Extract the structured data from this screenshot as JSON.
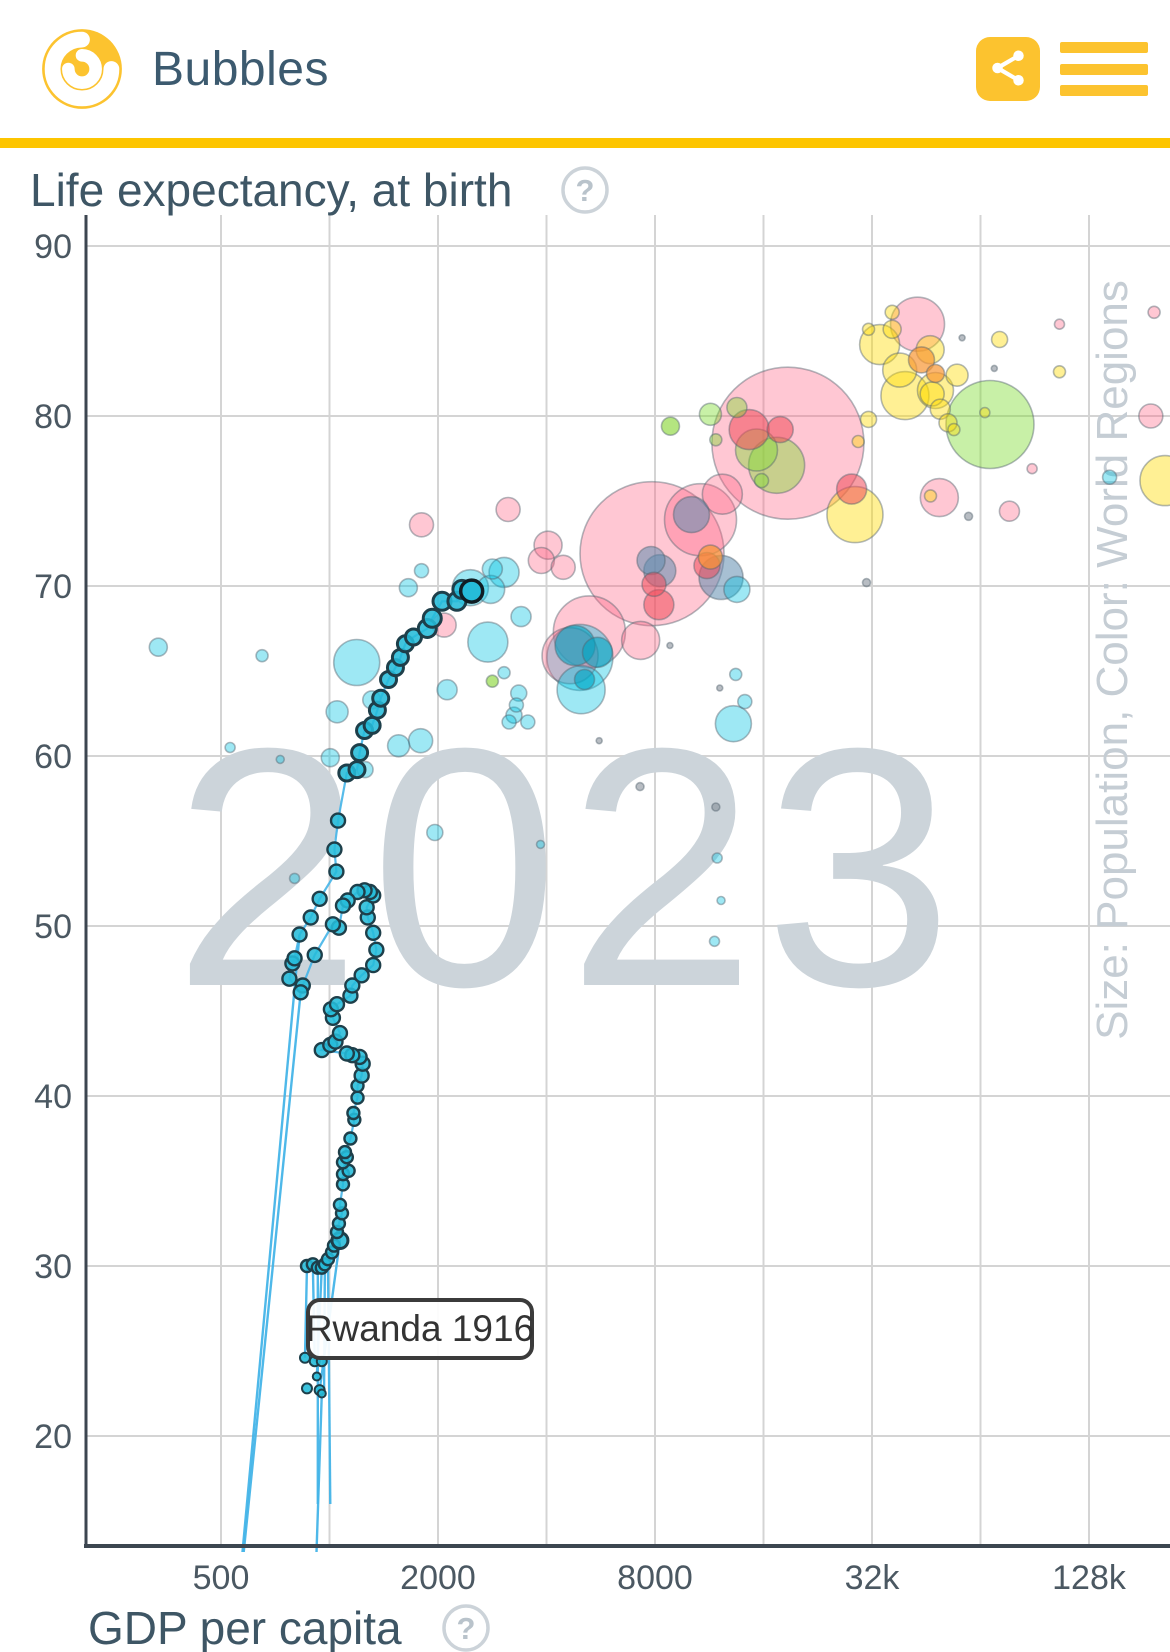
{
  "header": {
    "app_title": "Bubbles"
  },
  "chart": {
    "title": "Life expectancy, at birth",
    "x_title": "GDP per capita",
    "watermark": "2023",
    "side_label": "Size: Population, Color: World Regions",
    "annotation": "Rwanda 1916",
    "help_glyph": "?"
  },
  "chart_data": {
    "type": "scatter",
    "title": "Life expectancy, at birth",
    "xlabel": "GDP per capita",
    "ylabel": "Life expectancy, at birth",
    "x_scale": "log2",
    "x_range": [
      210,
      215000
    ],
    "y_range": [
      13.6,
      92.4
    ],
    "year": "2023",
    "size_by": "Population",
    "color_by": "World Regions",
    "y_ticks": [
      90,
      80,
      70,
      60,
      50,
      40,
      30,
      20
    ],
    "x_ticks": [
      {
        "value": 500,
        "label": "500"
      },
      {
        "value": 2000,
        "label": "2000"
      },
      {
        "value": 8000,
        "label": "8000"
      },
      {
        "value": 32000,
        "label": "32k"
      },
      {
        "value": 128000,
        "label": "128k"
      }
    ],
    "x_gridlines": [
      500,
      1000,
      2000,
      4000,
      8000,
      16000,
      32000,
      64000,
      128000
    ],
    "region_colors": {
      "africa": "rgba(0,195,225,0.38)",
      "asia": "rgba(255,95,130,0.35)",
      "europe": "rgba(255,220,0,0.42)",
      "americas": "rgba(125,220,45,0.42)",
      "red": "rgba(240,75,90,0.55)",
      "orange": "rgba(248,150,50,0.70)",
      "steel": "rgba(95,140,175,0.55)",
      "teal": "rgba(0,165,195,0.60)",
      "lime": "rgba(140,215,60,0.65)",
      "gray": "rgba(125,135,145,0.55)",
      "bubble_stroke": "rgba(85,100,110,0.45)",
      "trail_fill": "#26bcd9",
      "trail_stroke": "#1e3f4a",
      "trail_line": "#45b5e8",
      "highlight_stroke": "#101e24"
    },
    "bubbles": [
      [
        335,
        66.4,
        9,
        "africa"
      ],
      [
        650,
        65.9,
        6,
        "africa"
      ],
      [
        1190,
        65.5,
        23,
        "africa"
      ],
      [
        1050,
        62.6,
        11,
        "africa"
      ],
      [
        1310,
        63.3,
        9,
        "africa"
      ],
      [
        1555,
        60.6,
        11,
        "africa"
      ],
      [
        1005,
        59.9,
        9,
        "africa"
      ],
      [
        1255,
        59.2,
        8,
        "africa"
      ],
      [
        1655,
        69.9,
        9,
        "africa"
      ],
      [
        1800,
        70.9,
        7,
        "africa"
      ],
      [
        2460,
        69.9,
        18,
        "africa"
      ],
      [
        3050,
        70.8,
        15,
        "africa"
      ],
      [
        2830,
        71.0,
        10,
        "africa"
      ],
      [
        2800,
        69.8,
        14,
        "africa"
      ],
      [
        3400,
        68.2,
        10,
        "africa"
      ],
      [
        2750,
        66.7,
        20,
        "africa"
      ],
      [
        3050,
        64.9,
        6,
        "africa"
      ],
      [
        3350,
        63.7,
        8,
        "africa"
      ],
      [
        3300,
        63.0,
        7,
        "africa"
      ],
      [
        3250,
        62.4,
        8,
        "africa"
      ],
      [
        3550,
        62.0,
        7,
        "africa"
      ],
      [
        3150,
        62.0,
        7,
        "africa"
      ],
      [
        4950,
        65.8,
        33,
        "africa"
      ],
      [
        4990,
        63.9,
        24,
        "africa"
      ],
      [
        13200,
        61.9,
        18,
        "africa"
      ],
      [
        13500,
        69.8,
        13,
        "africa"
      ],
      [
        13400,
        64.8,
        6,
        "africa"
      ],
      [
        14200,
        63.2,
        7,
        "africa"
      ],
      [
        2120,
        63.9,
        10,
        "africa"
      ],
      [
        1790,
        60.9,
        12,
        "africa"
      ],
      [
        1960,
        55.5,
        8,
        "africa"
      ],
      [
        3850,
        54.8,
        4,
        "africa"
      ],
      [
        800,
        52.8,
        5,
        "africa"
      ],
      [
        11900,
        54.0,
        5,
        "africa"
      ],
      [
        12200,
        51.5,
        4,
        "africa"
      ],
      [
        11700,
        49.1,
        5,
        "africa"
      ],
      [
        146000,
        76.4,
        7,
        "africa"
      ],
      [
        730,
        59.8,
        4,
        "africa"
      ],
      [
        530,
        60.5,
        5,
        "africa"
      ],
      [
        4800,
        66.5,
        20,
        "teal"
      ],
      [
        5540,
        66.1,
        15,
        "teal"
      ],
      [
        5100,
        64.5,
        10,
        "teal"
      ],
      [
        7850,
        71.9,
        72,
        "asia"
      ],
      [
        18700,
        78.4,
        76,
        "asia"
      ],
      [
        42800,
        85.4,
        27,
        "asia"
      ],
      [
        4650,
        65.9,
        28,
        "asia"
      ],
      [
        5260,
        67.3,
        36,
        "asia"
      ],
      [
        7300,
        66.8,
        19,
        "asia"
      ],
      [
        10700,
        73.9,
        36,
        "asia"
      ],
      [
        12300,
        75.4,
        20,
        "asia"
      ],
      [
        49200,
        75.2,
        19,
        "asia"
      ],
      [
        77000,
        74.4,
        10,
        "asia"
      ],
      [
        106000,
        85.4,
        5,
        "asia"
      ],
      [
        1800,
        73.6,
        12,
        "asia"
      ],
      [
        3130,
        74.5,
        12,
        "asia"
      ],
      [
        4040,
        72.4,
        14,
        "asia"
      ],
      [
        3870,
        71.5,
        13,
        "asia"
      ],
      [
        4450,
        71.1,
        12,
        "asia"
      ],
      [
        2080,
        67.7,
        12,
        "asia"
      ],
      [
        89000,
        76.9,
        5,
        "asia"
      ],
      [
        190000,
        80.0,
        12,
        "asia"
      ],
      [
        194000,
        86.1,
        6,
        "asia"
      ],
      [
        28100,
        75.7,
        15,
        "red"
      ],
      [
        14600,
        79.2,
        20,
        "red"
      ],
      [
        17800,
        79.2,
        13,
        "red"
      ],
      [
        7950,
        70.1,
        12,
        "red"
      ],
      [
        8200,
        68.9,
        15,
        "red"
      ],
      [
        11150,
        71.2,
        13,
        "red"
      ],
      [
        11400,
        71.7,
        12,
        "orange"
      ],
      [
        43900,
        83.3,
        13,
        "orange"
      ],
      [
        48000,
        82.5,
        9,
        "orange"
      ],
      [
        12200,
        70.5,
        22,
        "steel"
      ],
      [
        8250,
        70.9,
        16,
        "steel"
      ],
      [
        7800,
        71.5,
        14,
        "steel"
      ],
      [
        10100,
        74.2,
        18,
        "steel"
      ],
      [
        33600,
        84.2,
        20,
        "europe"
      ],
      [
        38200,
        82.7,
        17,
        "europe"
      ],
      [
        46400,
        83.9,
        14,
        "europe"
      ],
      [
        39500,
        81.2,
        24,
        "europe"
      ],
      [
        48000,
        81.5,
        18,
        "europe"
      ],
      [
        55100,
        82.4,
        11,
        "europe"
      ],
      [
        36400,
        85.1,
        9,
        "europe"
      ],
      [
        72300,
        84.5,
        8,
        "europe"
      ],
      [
        106000,
        82.6,
        6,
        "europe"
      ],
      [
        28700,
        74.2,
        28,
        "europe"
      ],
      [
        31300,
        79.8,
        8,
        "europe"
      ],
      [
        29300,
        78.5,
        6,
        "europe"
      ],
      [
        54000,
        79.2,
        6,
        "europe"
      ],
      [
        65800,
        80.2,
        5,
        "europe"
      ],
      [
        36400,
        86.1,
        7,
        "europe"
      ],
      [
        31300,
        85.1,
        6,
        "europe"
      ],
      [
        208000,
        76.2,
        25,
        "europe"
      ],
      [
        46500,
        75.3,
        6,
        "europe"
      ],
      [
        47000,
        81.3,
        12,
        "europe"
      ],
      [
        49500,
        80.4,
        10,
        "europe"
      ],
      [
        52000,
        79.6,
        9,
        "europe"
      ],
      [
        68000,
        79.5,
        44,
        "americas"
      ],
      [
        17400,
        77.1,
        28,
        "americas"
      ],
      [
        15300,
        78.0,
        21,
        "americas"
      ],
      [
        11400,
        80.1,
        11,
        "americas"
      ],
      [
        13500,
        80.5,
        10,
        "americas"
      ],
      [
        11800,
        78.6,
        6,
        "americas"
      ],
      [
        15800,
        76.2,
        7,
        "americas"
      ],
      [
        8830,
        79.4,
        9,
        "lime"
      ],
      [
        2830,
        64.4,
        6,
        "lime"
      ],
      [
        56900,
        84.6,
        3,
        "gray"
      ],
      [
        69900,
        82.8,
        3,
        "gray"
      ],
      [
        59300,
        74.1,
        4,
        "gray"
      ],
      [
        7270,
        58.2,
        4,
        "gray"
      ],
      [
        30900,
        70.2,
        4,
        "gray"
      ],
      [
        5600,
        60.9,
        3,
        "gray"
      ],
      [
        8800,
        66.5,
        3,
        "gray"
      ],
      [
        12100,
        64.0,
        3,
        "gray"
      ],
      [
        11800,
        57.0,
        4,
        "gray"
      ]
    ],
    "trail": {
      "country": "Rwanda",
      "label": "Rwanda 1916",
      "highlight": [
        2480,
        69.7,
        11
      ],
      "points": [
        [
          866,
          30.0,
          6
        ],
        [
          899,
          30.1,
          6
        ],
        [
          928,
          29.9,
          6
        ],
        [
          952,
          29.9,
          6
        ],
        [
          971,
          30.1,
          6
        ],
        [
          990,
          30.4,
          6
        ],
        [
          1016,
          30.8,
          6
        ],
        [
          1029,
          31.2,
          6
        ],
        [
          1069,
          31.5,
          8
        ],
        [
          1049,
          32.0,
          6
        ],
        [
          1062,
          32.5,
          6
        ],
        [
          1083,
          33.1,
          6
        ],
        [
          1069,
          33.6,
          6
        ],
        [
          1090,
          34.8,
          6
        ],
        [
          1090,
          35.4,
          6
        ],
        [
          1130,
          35.6,
          6
        ],
        [
          1090,
          36.1,
          6
        ],
        [
          1117,
          36.4,
          6
        ],
        [
          1104,
          36.7,
          6
        ],
        [
          1143,
          37.5,
          6
        ],
        [
          1172,
          38.6,
          6
        ],
        [
          1165,
          39.0,
          6
        ],
        [
          1196,
          39.9,
          6
        ],
        [
          1196,
          40.6,
          6
        ],
        [
          1228,
          41.2,
          7
        ],
        [
          1236,
          41.9,
          7
        ],
        [
          1212,
          42.3,
          7
        ],
        [
          1157,
          42.4,
          7
        ],
        [
          1117,
          42.5,
          7
        ],
        [
          952,
          42.7,
          7
        ],
        [
          1005,
          43.0,
          7
        ],
        [
          1039,
          43.2,
          7
        ],
        [
          1069,
          43.7,
          7
        ],
        [
          1022,
          44.6,
          7
        ],
        [
          1009,
          45.1,
          7
        ],
        [
          1049,
          45.4,
          7
        ],
        [
          1143,
          45.9,
          7
        ],
        [
          1157,
          46.5,
          7
        ],
        [
          1228,
          47.1,
          7
        ],
        [
          1322,
          47.7,
          7
        ],
        [
          1349,
          48.6,
          7
        ],
        [
          1322,
          49.6,
          7
        ],
        [
          1277,
          50.5,
          7
        ],
        [
          1268,
          51.1,
          7
        ],
        [
          1322,
          51.8,
          7
        ],
        [
          1295,
          52.0,
          7
        ],
        [
          1251,
          52.1,
          7
        ],
        [
          1196,
          52.0,
          7
        ],
        [
          1123,
          51.5,
          7
        ],
        [
          1090,
          51.2,
          7
        ],
        [
          1062,
          49.9,
          7
        ],
        [
          1022,
          50.1,
          7
        ],
        [
          910,
          48.3,
          7
        ],
        [
          843,
          46.5,
          7
        ],
        [
          832,
          46.1,
          7
        ],
        [
          774,
          46.9,
          7
        ],
        [
          789,
          47.8,
          7
        ],
        [
          800,
          48.1,
          7
        ],
        [
          826,
          49.5,
          7
        ],
        [
          887,
          50.5,
          7
        ],
        [
          939,
          51.6,
          7
        ],
        [
          1045,
          53.2,
          7
        ],
        [
          1032,
          54.5,
          7
        ],
        [
          1056,
          56.2,
          7
        ],
        [
          1117,
          59.0,
          8
        ],
        [
          1192,
          59.2,
          8
        ],
        [
          1212,
          60.2,
          8
        ],
        [
          1251,
          61.5,
          8
        ],
        [
          1313,
          61.8,
          8
        ],
        [
          1358,
          62.7,
          8
        ],
        [
          1387,
          63.4,
          8
        ],
        [
          1458,
          64.5,
          8
        ],
        [
          1524,
          65.2,
          8
        ],
        [
          1573,
          65.8,
          8
        ],
        [
          1624,
          66.6,
          8
        ],
        [
          1710,
          67.0,
          8
        ],
        [
          1868,
          67.5,
          9
        ],
        [
          1928,
          68.1,
          9
        ],
        [
          2052,
          69.1,
          9
        ],
        [
          2257,
          69.1,
          9
        ],
        [
          2330,
          69.8,
          9
        ]
      ],
      "low_points": [
        [
          855,
          24.6,
          5
        ],
        [
          910,
          24.4,
          5
        ],
        [
          952,
          24.4,
          5
        ],
        [
          922,
          23.5,
          4
        ],
        [
          866,
          22.8,
          5
        ],
        [
          939,
          22.7,
          5
        ],
        [
          952,
          22.5,
          4
        ]
      ],
      "connectors": [
        [
          [
            826,
            49.5
          ],
          [
            550,
            9.0
          ]
        ],
        [
          [
            832,
            46.1
          ],
          [
            552,
            9.0
          ]
        ],
        [
          [
            866,
            30.0
          ],
          [
            855,
            24.6
          ]
        ],
        [
          [
            899,
            30.1
          ],
          [
            910,
            24.4
          ]
        ],
        [
          [
            928,
            29.9
          ],
          [
            928,
            16.0
          ]
        ],
        [
          [
            952,
            29.9
          ],
          [
            922,
            23.5
          ]
        ],
        [
          [
            971,
            30.1
          ],
          [
            966,
            22.8
          ]
        ],
        [
          [
            990,
            30.4
          ],
          [
            1005,
            16.0
          ]
        ],
        [
          [
            1069,
            31.5
          ],
          [
            939,
            22.7
          ]
        ],
        [
          [
            952,
            22.5
          ],
          [
            900,
            7.0
          ]
        ]
      ]
    }
  }
}
